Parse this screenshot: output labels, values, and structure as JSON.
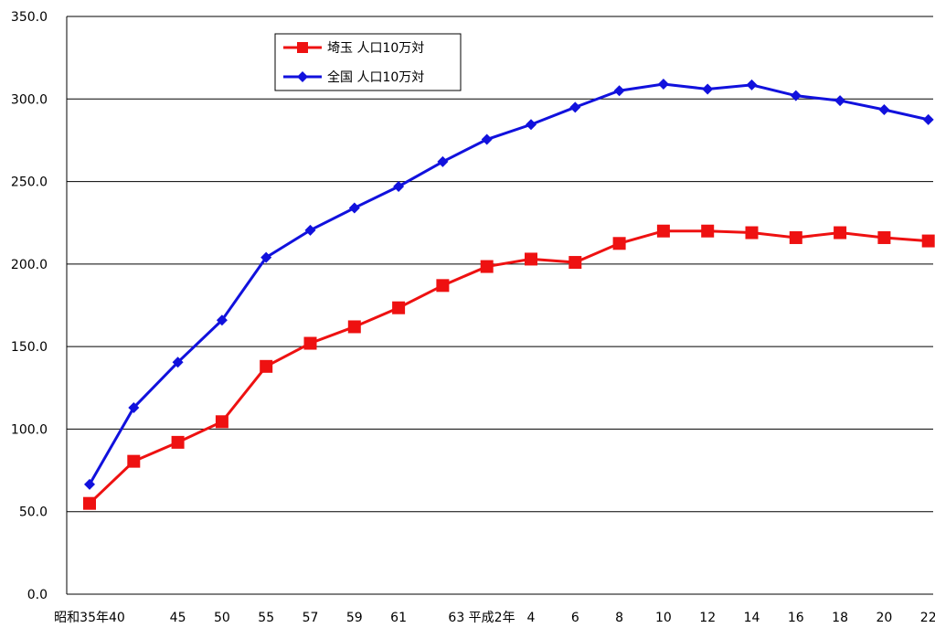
{
  "chart_data": {
    "type": "line",
    "categories": [
      "昭和35年",
      "40",
      "45",
      "50",
      "55",
      "57",
      "59",
      "61",
      "63",
      "平成2年",
      "4",
      "6",
      "8",
      "10",
      "12",
      "14",
      "16",
      "18",
      "20",
      "22"
    ],
    "x_tick_labels": [
      "昭和35年40",
      "45",
      "50",
      "55",
      "57",
      "59",
      "61",
      "63 平成2年",
      "4",
      "6",
      "8",
      "10",
      "12",
      "14",
      "16",
      "18",
      "20",
      "22"
    ],
    "series": [
      {
        "name": "埼玉 人口10万対",
        "color": "#ee1111",
        "marker": "square",
        "values": [
          55.0,
          80.5,
          92.0,
          104.5,
          138.0,
          152.0,
          162.0,
          173.5,
          187.0,
          198.5,
          203.0,
          201.0,
          212.5,
          220.0,
          220.0,
          219.0,
          216.0,
          219.0,
          216.0,
          214.0
        ]
      },
      {
        "name": "全国 人口10万対",
        "color": "#1111dd",
        "marker": "diamond",
        "values": [
          66.5,
          113.0,
          140.5,
          166.0,
          204.0,
          220.5,
          234.0,
          247.0,
          262.0,
          275.5,
          284.5,
          295.0,
          305.0,
          309.0,
          306.0,
          308.5,
          302.0,
          299.0,
          293.5,
          287.5
        ]
      }
    ],
    "y_ticks": [
      "0.0",
      "50.0",
      "100.0",
      "150.0",
      "200.0",
      "250.0",
      "300.0",
      "350.0"
    ],
    "ylim": [
      0,
      350
    ],
    "grid": "horizontal",
    "legend_position": "top-left"
  }
}
